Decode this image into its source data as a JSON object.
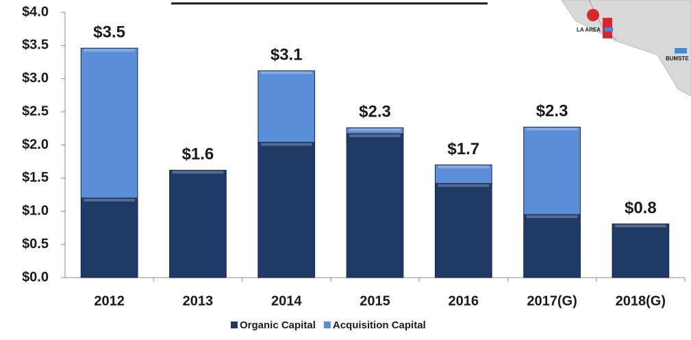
{
  "chart_data": {
    "type": "stacked-bar",
    "categories": [
      "2012",
      "2013",
      "2014",
      "2015",
      "2016",
      "2017(G)",
      "2018(G)"
    ],
    "series": [
      {
        "name": "Organic Capital",
        "color": "#1f3a66",
        "values": [
          1.2,
          1.62,
          2.04,
          2.17,
          1.42,
          0.95,
          0.81
        ]
      },
      {
        "name": "Acquisition Capital",
        "color": "#5a8fd8",
        "values": [
          2.26,
          0,
          1.08,
          0.09,
          0.28,
          1.32,
          0
        ]
      }
    ],
    "totals": [
      3.46,
      1.62,
      3.12,
      2.26,
      1.7,
      2.27,
      0.81
    ],
    "total_labels": [
      "$3.5",
      "$1.6",
      "$3.1",
      "$2.3",
      "$1.7",
      "$2.3",
      "$0.8"
    ],
    "ylim": [
      0,
      4
    ],
    "yticks": [
      {
        "value": 0,
        "label": "$0.0"
      },
      {
        "value": 0.5,
        "label": "$0.5"
      },
      {
        "value": 1,
        "label": "$1.0"
      },
      {
        "value": 1.5,
        "label": "$1.5"
      },
      {
        "value": 2,
        "label": "$2.0"
      },
      {
        "value": 2.5,
        "label": "$2.5"
      },
      {
        "value": 3,
        "label": "$3.0"
      },
      {
        "value": 3.5,
        "label": "$3.5"
      },
      {
        "value": 4,
        "label": "$4.0"
      }
    ],
    "legend": "bottom"
  },
  "inset": {
    "labels": [
      "LA AREA",
      "BUMSTE"
    ]
  }
}
